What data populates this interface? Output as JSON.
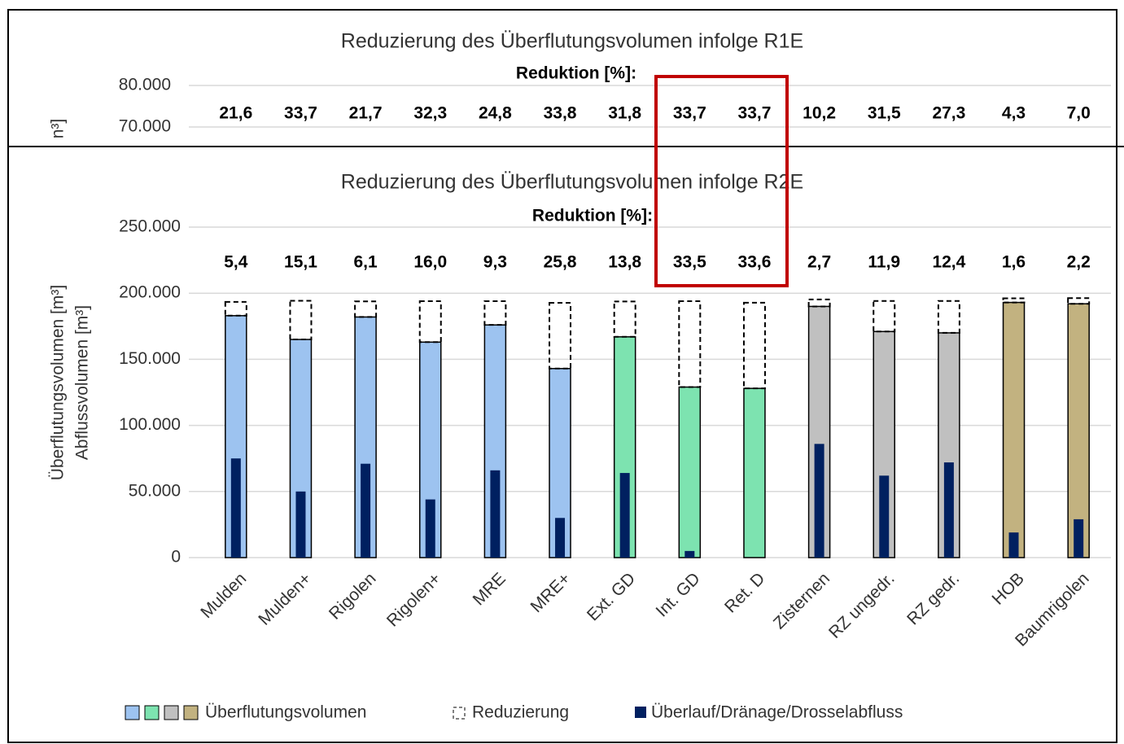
{
  "chart_data": [
    {
      "type": "bar",
      "title": "Reduzierung des Überflutungsvolumen infolge R1E",
      "subtitle": "Reduktion [%]:",
      "ylabel": "n³]",
      "values": [
        21.6,
        33.7,
        21.7,
        32.3,
        24.8,
        33.8,
        31.8,
        33.7,
        33.7,
        10.2,
        31.5,
        27.3,
        4.3,
        7.0
      ],
      "value_labels": [
        "21,6",
        "33,7",
        "21,7",
        "32,3",
        "24,8",
        "33,8",
        "31,8",
        "33,7",
        "33,7",
        "10,2",
        "31,5",
        "27,3",
        "4,3",
        "7,0"
      ],
      "ylim": [
        66000,
        82000
      ],
      "yticks": [
        {
          "value": 70000,
          "label": "70.000"
        },
        {
          "value": 80000,
          "label": "80.000"
        }
      ],
      "grid": true
    },
    {
      "type": "bar",
      "title": "Reduzierung des Überflutungsvolumen infolge R2E",
      "subtitle": "Reduktion [%]:",
      "ylabel": [
        "Überflutungsvolumen [m³]",
        "Abflussvolumen [m³]"
      ],
      "categories": [
        "Mulden",
        "Mulden+",
        "Rigolen",
        "Rigolen+",
        "MRE",
        "MRE+",
        "Ext. GD",
        "Int. GD",
        "Ret. D",
        "Zisternen",
        "RZ ungedr.",
        "RZ gedr.",
        "HOB",
        "Baumrigolen"
      ],
      "reduction": {
        "values": [
          5.4,
          15.1,
          6.1,
          16.0,
          9.3,
          25.8,
          13.8,
          33.5,
          33.6,
          2.7,
          11.9,
          12.4,
          1.6,
          2.2
        ],
        "value_labels": [
          "5,4",
          "15,1",
          "6,1",
          "16,0",
          "9,3",
          "25,8",
          "13,8",
          "33,5",
          "33,6",
          "2,7",
          "11,9",
          "12,4",
          "1,6",
          "2,2"
        ]
      },
      "series": [
        {
          "name": "Überflutungsvolumen",
          "colors": [
            "#9dc3f0",
            "#9dc3f0",
            "#9dc3f0",
            "#9dc3f0",
            "#9dc3f0",
            "#9dc3f0",
            "#7de3b0",
            "#7de3b0",
            "#7de3b0",
            "#c0c0c0",
            "#c0c0c0",
            "#c0c0c0",
            "#c2b280",
            "#c2b280"
          ],
          "values": [
            183000,
            165000,
            182000,
            163000,
            176000,
            143000,
            167000,
            129000,
            128000,
            190000,
            171000,
            170000,
            193000,
            192000
          ]
        },
        {
          "name": "Reduzierung",
          "color": "#000000",
          "stacked": true,
          "values": [
            10400,
            29300,
            11800,
            31000,
            18000,
            49700,
            26700,
            65000,
            64800,
            5300,
            23100,
            24100,
            3100,
            4300
          ]
        },
        {
          "name": "Überlauf/Dränage/Drosselabfluss",
          "color": "#002060",
          "values": [
            75000,
            50000,
            71000,
            44000,
            66000,
            30000,
            64000,
            5000,
            0,
            86000,
            62000,
            72000,
            19000,
            29000
          ]
        }
      ],
      "ylim": [
        0,
        250000
      ],
      "yticks": [
        0,
        {
          "value": 50000,
          "label": "50.000"
        },
        {
          "value": 100000,
          "label": "100.000"
        },
        {
          "value": 150000,
          "label": "150.000"
        },
        {
          "value": 200000,
          "label": "200.000"
        },
        {
          "value": 250000,
          "label": "250.000"
        }
      ],
      "grid": true
    }
  ]
}
